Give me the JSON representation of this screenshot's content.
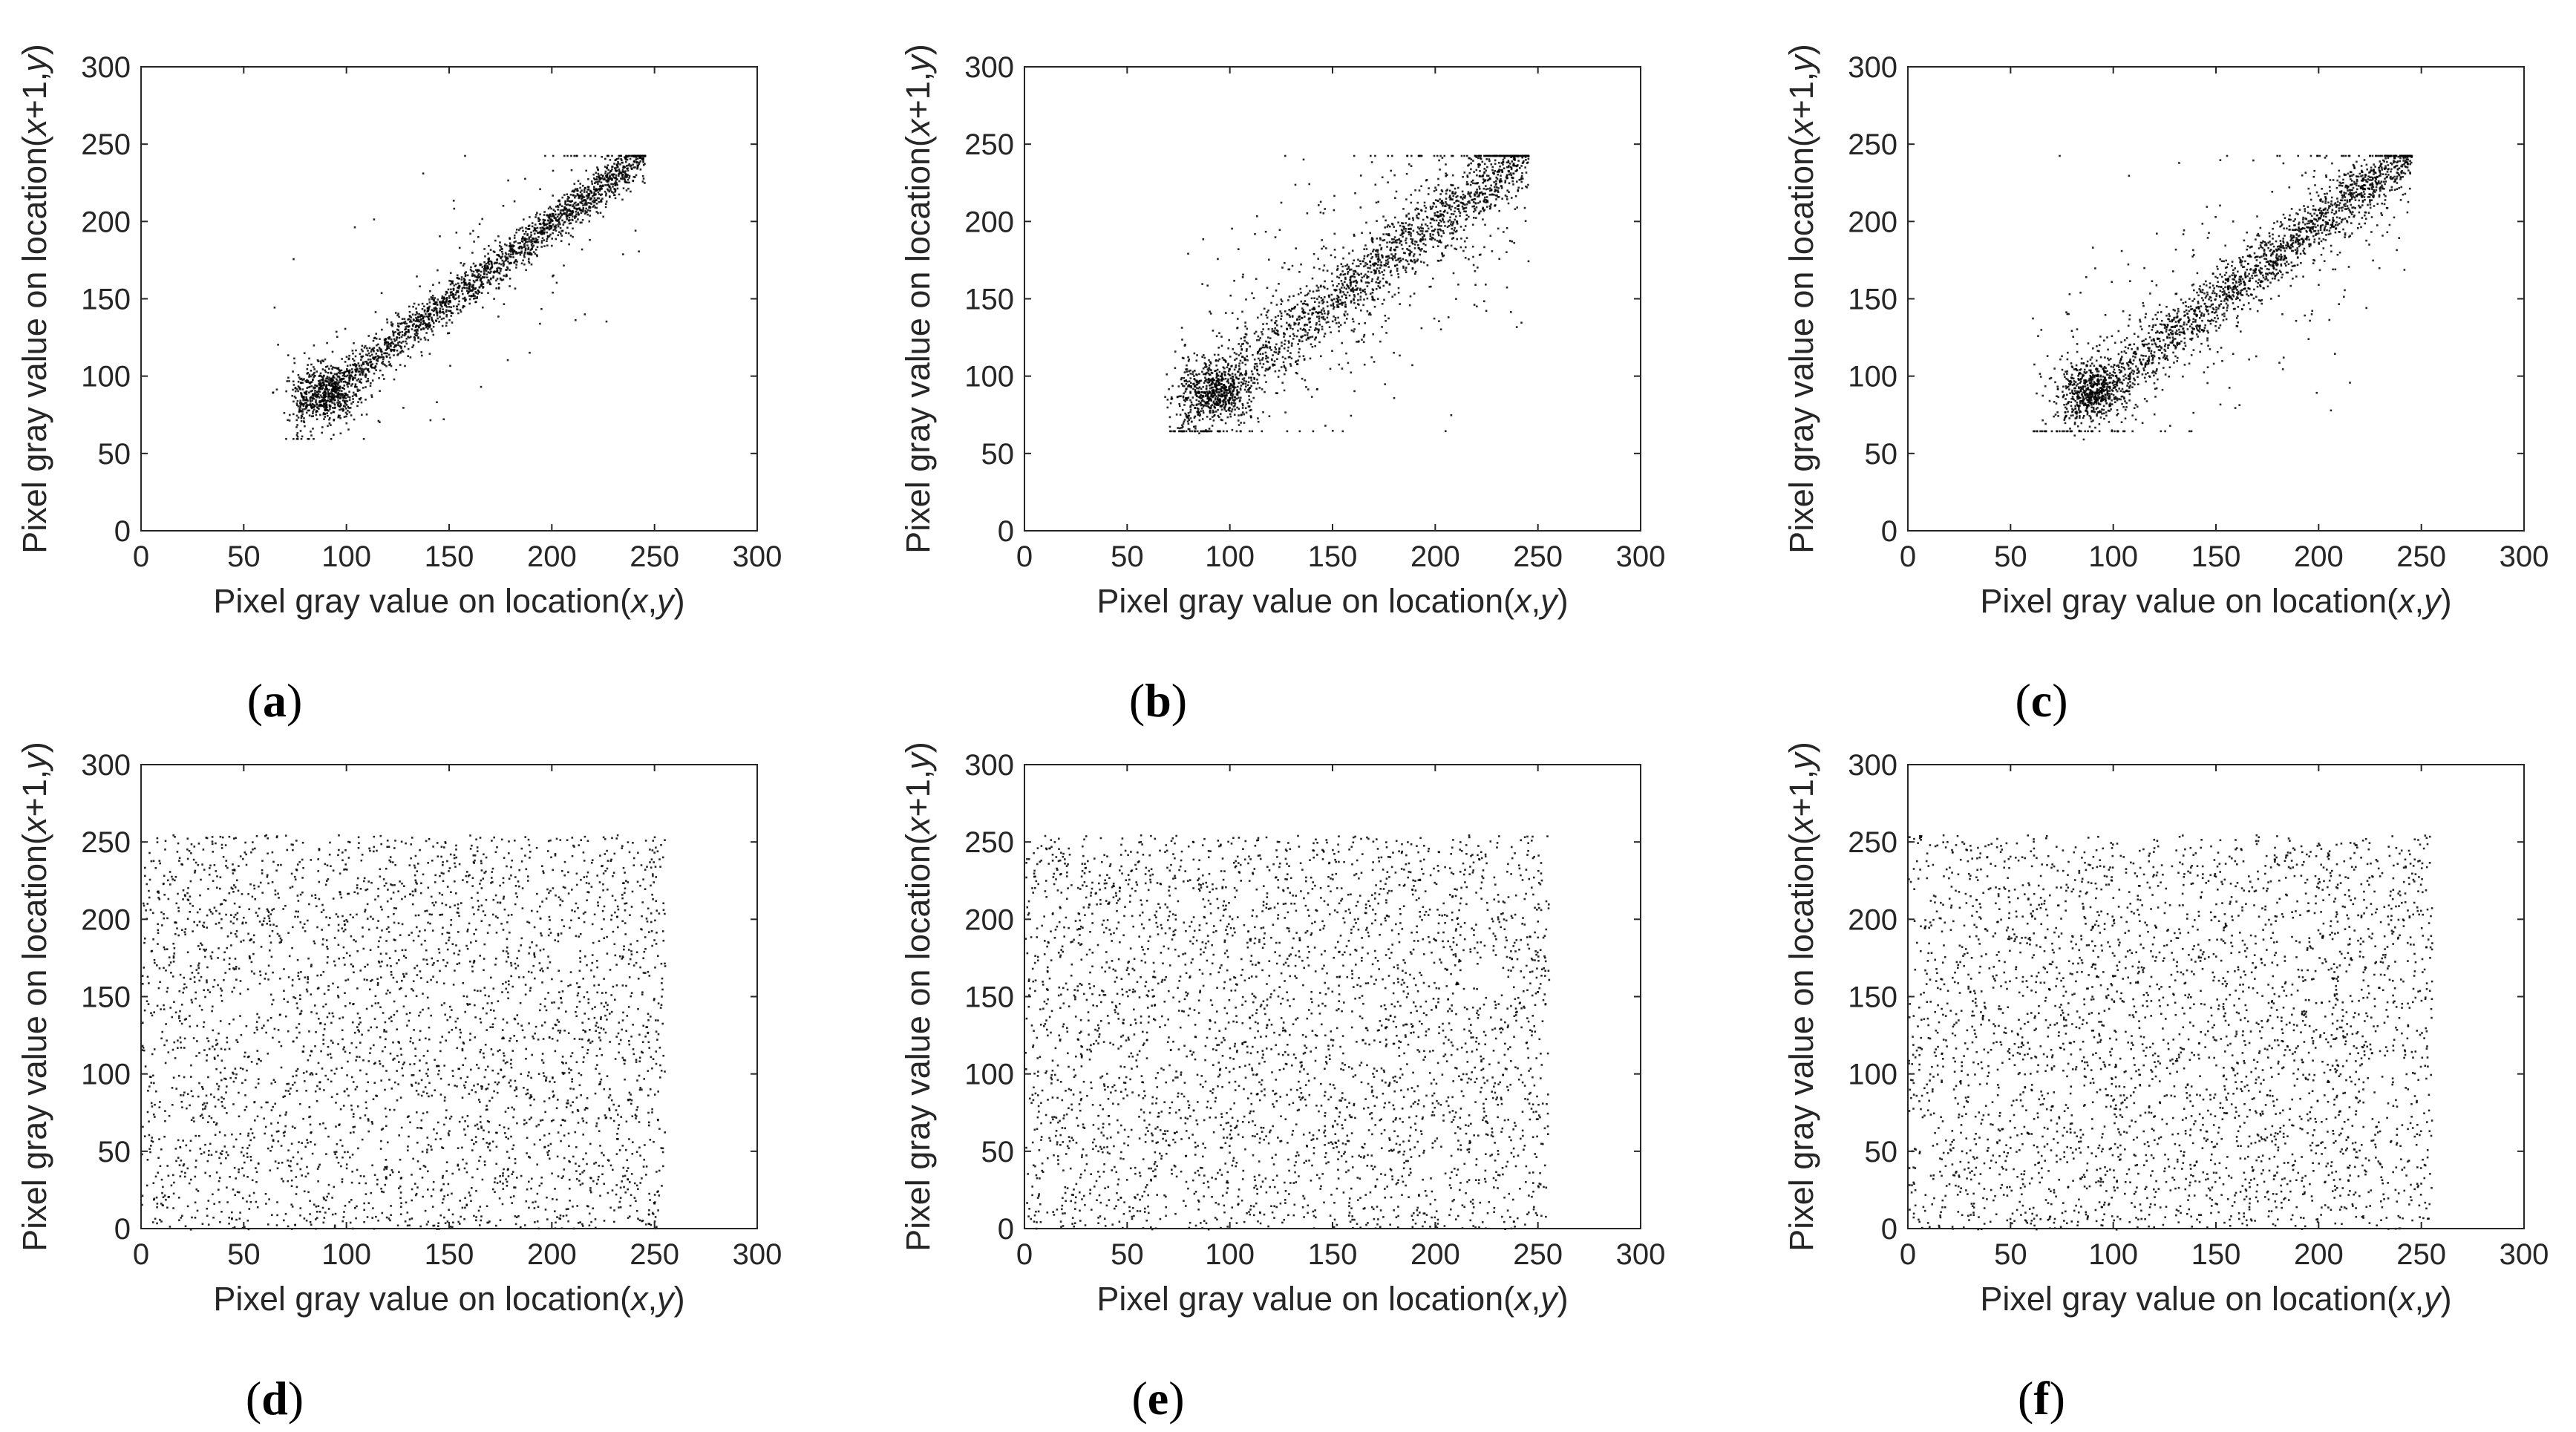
{
  "chart_data": [
    {
      "type": "scatter",
      "panel_label": "a",
      "xlabel": {
        "pre": "Pixel gray value on location(",
        "v1": "x",
        "sep": ",",
        "v2": "y",
        "post": ")"
      },
      "ylabel": {
        "pre": "Pixel gray value on location(",
        "v1": "x",
        "sep": "+1,",
        "v2": "y",
        "post": ")"
      },
      "xlim": [
        0,
        300
      ],
      "ylim": [
        0,
        300
      ],
      "xticks": [
        "0",
        "50",
        "100",
        "150",
        "200",
        "250",
        "300"
      ],
      "yticks": [
        "0",
        "50",
        "100",
        "150",
        "200",
        "250",
        "300"
      ],
      "grid": false,
      "distribution": {
        "kind": "correlated",
        "x_range": [
          63,
          245
        ],
        "y_range": [
          60,
          243
        ],
        "spread": 7,
        "dense_cluster_center": [
          90,
          90
        ],
        "outlier_fraction": 0.05
      },
      "point_count": 2600,
      "marker_color": "#000000"
    },
    {
      "type": "scatter",
      "panel_label": "b",
      "xlabel": {
        "pre": "Pixel gray value on location(",
        "v1": "x",
        "sep": ",",
        "v2": "y",
        "post": ")"
      },
      "ylabel": {
        "pre": "Pixel gray value on location(",
        "v1": "x",
        "sep": "+1,",
        "v2": "y",
        "post": ")"
      },
      "xlim": [
        0,
        300
      ],
      "ylim": [
        0,
        300
      ],
      "xticks": [
        "0",
        "50",
        "100",
        "150",
        "200",
        "250",
        "300"
      ],
      "yticks": [
        "0",
        "50",
        "100",
        "150",
        "200",
        "250",
        "300"
      ],
      "grid": false,
      "distribution": {
        "kind": "correlated",
        "x_range": [
          70,
          245
        ],
        "y_range": [
          65,
          243
        ],
        "spread": 12,
        "dense_cluster_center": [
          92,
          90
        ],
        "outlier_fraction": 0.2
      },
      "point_count": 2600,
      "marker_color": "#000000"
    },
    {
      "type": "scatter",
      "panel_label": "c",
      "xlabel": {
        "pre": "Pixel gray value on location(",
        "v1": "x",
        "sep": ",",
        "v2": "y",
        "post": ")"
      },
      "ylabel": {
        "pre": "Pixel gray value on location(",
        "v1": "x",
        "sep": "+1,",
        "v2": "y",
        "post": ")"
      },
      "xlim": [
        0,
        300
      ],
      "ylim": [
        0,
        300
      ],
      "xticks": [
        "0",
        "50",
        "100",
        "150",
        "200",
        "250",
        "300"
      ],
      "yticks": [
        "0",
        "50",
        "100",
        "150",
        "200",
        "250",
        "300"
      ],
      "grid": false,
      "distribution": {
        "kind": "correlated",
        "x_range": [
          60,
          245
        ],
        "y_range": [
          65,
          243
        ],
        "spread": 10,
        "dense_cluster_center": [
          90,
          92
        ],
        "outlier_fraction": 0.14
      },
      "point_count": 2600,
      "marker_color": "#000000"
    },
    {
      "type": "scatter",
      "panel_label": "d",
      "xlabel": {
        "pre": "Pixel gray value on location(",
        "v1": "x",
        "sep": ",",
        "v2": "y",
        "post": ")"
      },
      "ylabel": {
        "pre": "Pixel gray value on location(",
        "v1": "x",
        "sep": "+1,",
        "v2": "y",
        "post": ")"
      },
      "xlim": [
        0,
        300
      ],
      "ylim": [
        0,
        300
      ],
      "xticks": [
        "0",
        "50",
        "100",
        "150",
        "200",
        "250",
        "300"
      ],
      "yticks": [
        "0",
        "50",
        "100",
        "150",
        "200",
        "250",
        "300"
      ],
      "grid": false,
      "distribution": {
        "kind": "uniform",
        "x_range": [
          0,
          255
        ],
        "y_range": [
          0,
          255
        ]
      },
      "point_count": 3200,
      "marker_color": "#000000"
    },
    {
      "type": "scatter",
      "panel_label": "e",
      "xlabel": {
        "pre": "Pixel gray value on location(",
        "v1": "x",
        "sep": ",",
        "v2": "y",
        "post": ")"
      },
      "ylabel": {
        "pre": "Pixel gray value on location(",
        "v1": "x",
        "sep": "+1,",
        "v2": "y",
        "post": ")"
      },
      "xlim": [
        0,
        300
      ],
      "ylim": [
        0,
        300
      ],
      "xticks": [
        "0",
        "50",
        "100",
        "150",
        "200",
        "250",
        "300"
      ],
      "yticks": [
        "0",
        "50",
        "100",
        "150",
        "200",
        "250",
        "300"
      ],
      "grid": false,
      "distribution": {
        "kind": "uniform",
        "x_range": [
          0,
          255
        ],
        "y_range": [
          0,
          255
        ]
      },
      "point_count": 3200,
      "marker_color": "#000000"
    },
    {
      "type": "scatter",
      "panel_label": "f",
      "xlabel": {
        "pre": "Pixel gray value on location(",
        "v1": "x",
        "sep": ",",
        "v2": "y",
        "post": ")"
      },
      "ylabel": {
        "pre": "Pixel gray value on location(",
        "v1": "x",
        "sep": "+1,",
        "v2": "y",
        "post": ")"
      },
      "xlim": [
        0,
        300
      ],
      "ylim": [
        0,
        300
      ],
      "xticks": [
        "0",
        "50",
        "100",
        "150",
        "200",
        "250",
        "300"
      ],
      "yticks": [
        "0",
        "50",
        "100",
        "150",
        "200",
        "250",
        "300"
      ],
      "grid": false,
      "distribution": {
        "kind": "uniform",
        "x_range": [
          0,
          255
        ],
        "y_range": [
          0,
          255
        ]
      },
      "point_count": 3200,
      "marker_color": "#000000"
    }
  ]
}
